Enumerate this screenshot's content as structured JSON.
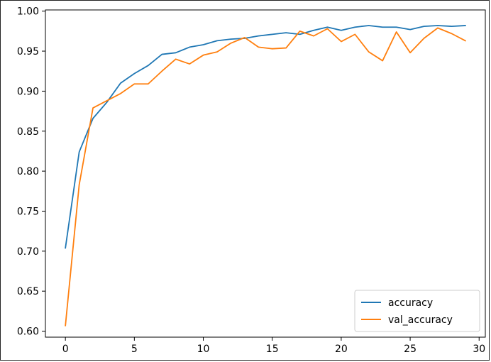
{
  "chart_data": {
    "type": "line",
    "title": "",
    "xlabel": "",
    "ylabel": "",
    "xlim": [
      -1.45,
      30.45
    ],
    "ylim": [
      0.5925,
      1.0015
    ],
    "x_ticks": [
      0,
      5,
      10,
      15,
      20,
      25,
      30
    ],
    "y_ticks": [
      0.6,
      0.65,
      0.7,
      0.75,
      0.8,
      0.85,
      0.9,
      0.95,
      1.0
    ],
    "x_tick_labels": [
      "0",
      "5",
      "10",
      "15",
      "20",
      "25",
      "30"
    ],
    "y_tick_labels": [
      "0.60",
      "0.65",
      "0.70",
      "0.75",
      "0.80",
      "0.85",
      "0.90",
      "0.95",
      "1.00"
    ],
    "grid": false,
    "legend": {
      "position": "lower-right"
    },
    "x": [
      0,
      1,
      2,
      3,
      4,
      5,
      6,
      7,
      8,
      9,
      10,
      11,
      12,
      13,
      14,
      15,
      16,
      17,
      18,
      19,
      20,
      21,
      22,
      23,
      24,
      25,
      26,
      27,
      28,
      29
    ],
    "series": [
      {
        "name": "accuracy",
        "color": "#1f77b4",
        "values": [
          0.704,
          0.824,
          0.866,
          0.886,
          0.91,
          0.922,
          0.932,
          0.946,
          0.948,
          0.955,
          0.958,
          0.963,
          0.965,
          0.966,
          0.969,
          0.971,
          0.973,
          0.971,
          0.976,
          0.98,
          0.976,
          0.98,
          0.982,
          0.98,
          0.98,
          0.977,
          0.981,
          0.982,
          0.981,
          0.982
        ]
      },
      {
        "name": "val_accuracy",
        "color": "#ff7f0e",
        "values": [
          0.607,
          0.783,
          0.879,
          0.888,
          0.897,
          0.909,
          0.909,
          0.925,
          0.94,
          0.934,
          0.945,
          0.949,
          0.96,
          0.967,
          0.955,
          0.953,
          0.954,
          0.975,
          0.969,
          0.978,
          0.962,
          0.971,
          0.949,
          0.938,
          0.974,
          0.948,
          0.966,
          0.979,
          0.972,
          0.963
        ]
      }
    ]
  }
}
